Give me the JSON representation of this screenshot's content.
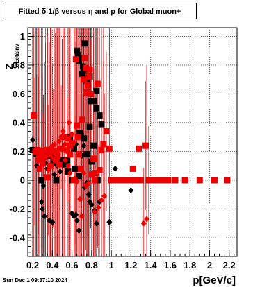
{
  "title": "Fitted δ 1/β versus η and p for Global muon+",
  "datestamp": "Sun Dec  1 09:37:10 2024",
  "chart_data": {
    "type": "scatter",
    "title": "Fitted δ 1/β versus η and p for Global muon+",
    "xlabel": "p[GeV/c]",
    "ylabel": "Z",
    "ylabel_sub": "dEetainv",
    "xlim": [
      0.15,
      2.28
    ],
    "ylim": [
      -0.53,
      1.06
    ],
    "xticks": [
      "0.2",
      "0.4",
      "0.6",
      "0.8",
      "1",
      "1.2",
      "1.4",
      "1.6",
      "1.8",
      "2",
      "2.2"
    ],
    "xtick_values": [
      0.2,
      0.4,
      0.6,
      0.8,
      1.0,
      1.2,
      1.4,
      1.6,
      1.8,
      2.0,
      2.2
    ],
    "yticks": [
      "-0.4",
      "-0.2",
      "0",
      "0.2",
      "0.4",
      "0.6",
      "0.8",
      "1"
    ],
    "ytick_values": [
      -0.4,
      -0.2,
      0,
      0.2,
      0.4,
      0.6,
      0.8,
      1.0
    ],
    "grid": true,
    "series": [
      {
        "color": "#000000",
        "marker": "square",
        "points": [
          [
            0.2,
            0.21
          ],
          [
            0.24,
            0.18
          ],
          [
            0.29,
            0.0
          ],
          [
            0.3,
            0.17
          ],
          [
            0.35,
            0.17
          ],
          [
            0.38,
            0.19
          ],
          [
            0.42,
            0.12
          ],
          [
            0.44,
            0.0
          ],
          [
            0.47,
            0.13
          ],
          [
            0.5,
            0.14
          ],
          [
            0.53,
            0.11
          ],
          [
            0.56,
            0.06
          ],
          [
            0.6,
            0.0
          ],
          [
            0.63,
            0.0
          ],
          [
            0.65,
            0.9
          ],
          [
            0.66,
            0.87
          ],
          [
            0.67,
            0.83
          ],
          [
            0.68,
            0.85
          ],
          [
            0.7,
            0.74
          ],
          [
            0.71,
            0.79
          ],
          [
            0.72,
            0.77
          ],
          [
            0.73,
            0.95
          ],
          [
            0.75,
            0.69
          ],
          [
            0.76,
            0.66
          ],
          [
            0.78,
            0.72
          ],
          [
            0.79,
            0.55
          ],
          [
            0.82,
            0.55
          ],
          [
            0.85,
            0.62
          ],
          [
            0.88,
            0.45
          ],
          [
            0.9,
            0.39
          ],
          [
            0.68,
            0.33
          ],
          [
            0.72,
            0.29
          ],
          [
            0.75,
            0.18
          ],
          [
            0.8,
            0.13
          ],
          [
            0.63,
            0.08
          ],
          [
            0.67,
            0.03
          ],
          [
            0.58,
            0.3
          ],
          [
            0.62,
            0.22
          ],
          [
            0.78,
            0.37
          ],
          [
            0.82,
            0.24
          ],
          [
            0.55,
            0.14
          ],
          [
            0.85,
            0.5
          ],
          [
            1.0,
            0.0
          ],
          [
            1.05,
            0.0
          ],
          [
            1.1,
            0.0
          ],
          [
            1.15,
            0.0
          ],
          [
            1.2,
            0.0
          ],
          [
            1.25,
            0.0
          ],
          [
            1.3,
            0.0
          ],
          [
            0.86,
            0.0
          ]
        ]
      },
      {
        "color": "#000000",
        "marker": "diamond",
        "points": [
          [
            0.2,
            0.28
          ],
          [
            0.24,
            0.1
          ],
          [
            0.29,
            -0.15
          ],
          [
            0.3,
            -0.2
          ],
          [
            0.31,
            -0.04
          ],
          [
            0.32,
            -0.25
          ],
          [
            0.33,
            0.12
          ],
          [
            0.35,
            0.08
          ],
          [
            0.37,
            -0.28
          ],
          [
            0.4,
            -0.29
          ],
          [
            0.42,
            0.04
          ],
          [
            0.45,
            0.1
          ],
          [
            0.48,
            0.06
          ],
          [
            0.6,
            -0.23
          ],
          [
            0.62,
            -0.25
          ],
          [
            0.64,
            -0.24
          ],
          [
            0.65,
            -0.28
          ],
          [
            0.67,
            -0.35
          ],
          [
            0.7,
            0.32
          ],
          [
            0.72,
            0.24
          ],
          [
            0.75,
            -0.02
          ],
          [
            0.77,
            -0.1
          ],
          [
            0.78,
            -0.15
          ],
          [
            0.8,
            -0.17
          ],
          [
            0.83,
            -0.21
          ],
          [
            0.85,
            -0.3
          ],
          [
            0.88,
            -0.15
          ],
          [
            0.7,
            0.17
          ],
          [
            1.2,
            -0.07
          ],
          [
            1.22,
            0.0
          ],
          [
            0.55,
            0.2
          ],
          [
            0.58,
            0.18
          ],
          [
            0.64,
            0.25
          ],
          [
            0.73,
            -0.05
          ],
          [
            0.98,
            -0.29
          ],
          [
            1.04,
            0.08
          ]
        ]
      },
      {
        "color": "#ee0000",
        "marker": "square",
        "points": [
          [
            0.21,
            0.45
          ],
          [
            0.23,
            0.2
          ],
          [
            0.25,
            0.21
          ],
          [
            0.27,
            0.18
          ],
          [
            0.3,
            0.2
          ],
          [
            0.32,
            0.16
          ],
          [
            0.35,
            0.21
          ],
          [
            0.37,
            0.18
          ],
          [
            0.4,
            0.2
          ],
          [
            0.43,
            0.2
          ],
          [
            0.45,
            0.17
          ],
          [
            0.48,
            0.22
          ],
          [
            0.5,
            0.22
          ],
          [
            0.52,
            0.3
          ],
          [
            0.55,
            0.21
          ],
          [
            0.56,
            0.29
          ],
          [
            0.58,
            0.24
          ],
          [
            0.6,
            0.26
          ],
          [
            0.62,
            0.0
          ],
          [
            0.64,
            0.84
          ],
          [
            0.66,
            0.3
          ],
          [
            0.67,
            0.18
          ],
          [
            0.69,
            0.08
          ],
          [
            0.72,
            0.7
          ],
          [
            0.74,
            0.78
          ],
          [
            0.75,
            0.61
          ],
          [
            0.76,
            0.66
          ],
          [
            0.78,
            0.77
          ],
          [
            0.79,
            0.6
          ],
          [
            0.8,
            0.04
          ],
          [
            0.82,
            0.15
          ],
          [
            0.84,
            0.05
          ],
          [
            0.86,
            0.67
          ],
          [
            0.88,
            0.07
          ],
          [
            0.9,
            0.21
          ],
          [
            0.92,
            0.25
          ],
          [
            0.95,
            0.34
          ],
          [
            0.98,
            0.22
          ],
          [
            1.0,
            0.0
          ],
          [
            1.05,
            0.0
          ],
          [
            1.1,
            0.0
          ],
          [
            1.15,
            0.0
          ],
          [
            1.2,
            0.0
          ],
          [
            1.25,
            0.0
          ],
          [
            1.3,
            0.0
          ],
          [
            1.35,
            0.24
          ],
          [
            1.28,
            0.22
          ],
          [
            1.22,
            0.08
          ],
          [
            1.38,
            0.0
          ],
          [
            1.42,
            0.0
          ],
          [
            1.46,
            0.0
          ],
          [
            1.52,
            0.0
          ],
          [
            1.58,
            0.0
          ],
          [
            1.65,
            0.0
          ],
          [
            1.75,
            0.0
          ],
          [
            1.9,
            0.0
          ],
          [
            2.05,
            0.0
          ],
          [
            2.18,
            0.0
          ],
          [
            0.35,
            0.02
          ],
          [
            0.38,
            0.1
          ],
          [
            0.47,
            0.11
          ],
          [
            0.44,
            0.14
          ],
          [
            0.58,
            0.18
          ],
          [
            0.65,
            0.38
          ],
          [
            0.7,
            0.42
          ],
          [
            0.73,
            0.85
          ],
          [
            0.77,
            0.72
          ],
          [
            0.83,
            0.0
          ],
          [
            0.3,
            0.12
          ],
          [
            0.27,
            0.08
          ],
          [
            0.26,
            0.14
          ]
        ]
      },
      {
        "color": "#ee0000",
        "marker": "diamond",
        "points": [
          [
            0.22,
            0.2
          ],
          [
            0.26,
            0.17
          ],
          [
            0.31,
            0.11
          ],
          [
            0.33,
            0.16
          ],
          [
            0.36,
            0.07
          ],
          [
            0.39,
            0.23
          ],
          [
            0.41,
            0.15
          ],
          [
            0.44,
            0.19
          ],
          [
            0.47,
            0.27
          ],
          [
            0.49,
            0.3
          ],
          [
            0.51,
            0.34
          ],
          [
            0.53,
            0.25
          ],
          [
            0.56,
            0.1
          ],
          [
            0.58,
            0.05
          ],
          [
            0.63,
            0.01
          ],
          [
            0.65,
            -0.01
          ],
          [
            0.68,
            -0.13
          ],
          [
            0.7,
            -0.25
          ],
          [
            0.72,
            0.05
          ],
          [
            0.74,
            -0.04
          ],
          [
            0.77,
            -0.02
          ],
          [
            0.83,
            -0.22
          ],
          [
            0.87,
            -0.19
          ],
          [
            0.9,
            -0.14
          ],
          [
            0.93,
            -0.11
          ],
          [
            1.33,
            -0.3
          ],
          [
            1.36,
            -0.27
          ],
          [
            0.62,
            0.26
          ],
          [
            0.6,
            0.32
          ],
          [
            0.57,
            0.4
          ],
          [
            0.53,
            0.14
          ],
          [
            0.46,
            0.18
          ],
          [
            0.42,
            0.25
          ]
        ]
      }
    ]
  }
}
